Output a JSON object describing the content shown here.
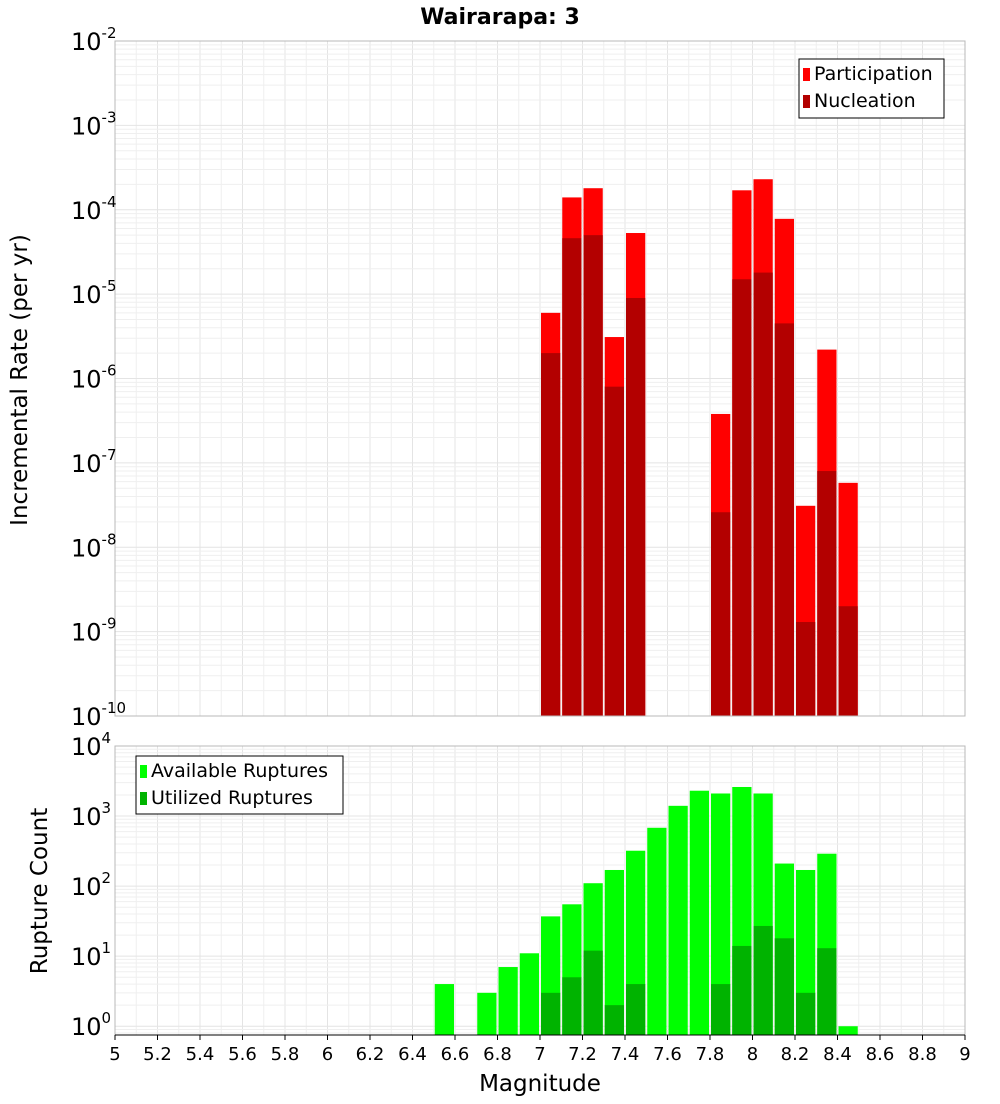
{
  "chart_data": [
    {
      "type": "bar",
      "title": "Wairarapa: 3",
      "xlabel": "",
      "ylabel": "Incremental Rate (per yr)",
      "y_scale": "log",
      "ylim": [
        1e-10,
        0.01
      ],
      "xlim": [
        5,
        9
      ],
      "bin_width": 0.1,
      "grid": true,
      "legend_position": "top-right",
      "y_ticks": [
        {
          "base": "10",
          "exp": "-10"
        },
        {
          "base": "10",
          "exp": "-9"
        },
        {
          "base": "10",
          "exp": "-8"
        },
        {
          "base": "10",
          "exp": "-7"
        },
        {
          "base": "10",
          "exp": "-6"
        },
        {
          "base": "10",
          "exp": "-5"
        },
        {
          "base": "10",
          "exp": "-4"
        },
        {
          "base": "10",
          "exp": "-3"
        },
        {
          "base": "10",
          "exp": "-2"
        }
      ],
      "series": [
        {
          "name": "Participation",
          "color": "#ff0000",
          "x": [
            7.05,
            7.15,
            7.25,
            7.35,
            7.45,
            7.85,
            7.95,
            8.05,
            8.15,
            8.25,
            8.35,
            8.45
          ],
          "values": [
            6e-06,
            0.00014,
            0.00018,
            3.1e-06,
            5.3e-05,
            3.8e-07,
            0.00017,
            0.00023,
            7.8e-05,
            3.1e-08,
            2.2e-06,
            5.8e-08
          ]
        },
        {
          "name": "Nucleation",
          "color": "#b30000",
          "x": [
            7.05,
            7.15,
            7.25,
            7.35,
            7.45,
            7.85,
            7.95,
            8.05,
            8.15,
            8.25,
            8.35,
            8.45
          ],
          "values": [
            2e-06,
            4.6e-05,
            5e-05,
            8e-07,
            9e-06,
            2.6e-08,
            1.5e-05,
            1.8e-05,
            4.5e-06,
            1.3e-09,
            8e-08,
            2e-09
          ]
        }
      ]
    },
    {
      "type": "bar",
      "title": "",
      "xlabel": "Magnitude",
      "ylabel": "Rupture Count",
      "y_scale": "log",
      "ylim": [
        0.75,
        10000
      ],
      "xlim": [
        5,
        9
      ],
      "bin_width": 0.1,
      "grid": true,
      "legend_position": "top-left",
      "x_ticks": [
        "5",
        "5.2",
        "5.4",
        "5.6",
        "5.8",
        "6",
        "6.2",
        "6.4",
        "6.6",
        "6.8",
        "7",
        "7.2",
        "7.4",
        "7.6",
        "7.8",
        "8",
        "8.2",
        "8.4",
        "8.6",
        "8.8",
        "9"
      ],
      "y_ticks": [
        {
          "base": "10",
          "exp": "0"
        },
        {
          "base": "10",
          "exp": "1"
        },
        {
          "base": "10",
          "exp": "2"
        },
        {
          "base": "10",
          "exp": "3"
        },
        {
          "base": "10",
          "exp": "4"
        }
      ],
      "series": [
        {
          "name": "Available Ruptures",
          "color": "#00ff00",
          "x": [
            6.55,
            6.75,
            6.85,
            6.95,
            7.05,
            7.15,
            7.25,
            7.35,
            7.45,
            7.55,
            7.65,
            7.75,
            7.85,
            7.95,
            8.05,
            8.15,
            8.25,
            8.35,
            8.45
          ],
          "values": [
            4,
            3,
            7,
            11,
            37,
            55,
            110,
            170,
            320,
            680,
            1400,
            2300,
            2100,
            2600,
            2100,
            210,
            170,
            290,
            1
          ]
        },
        {
          "name": "Utilized Ruptures",
          "color": "#00b300",
          "x": [
            7.05,
            7.15,
            7.25,
            7.35,
            7.45,
            7.85,
            7.95,
            8.05,
            8.15,
            8.25,
            8.35
          ],
          "values": [
            3,
            5,
            12,
            2,
            4,
            4,
            14,
            27,
            18,
            3,
            13
          ]
        }
      ]
    }
  ]
}
